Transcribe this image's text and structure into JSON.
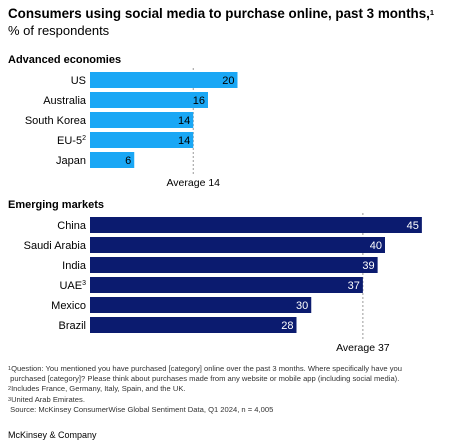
{
  "title": "Consumers using social media to purchase online, past 3 months,",
  "title_sup": "1",
  "subtitle": "% of respondents",
  "colors": {
    "advanced": "#1AA7F5",
    "emerging": "#0B1B6F",
    "average_line": "#9a9a9a"
  },
  "chart_data": [
    {
      "type": "bar",
      "orientation": "horizontal",
      "title": "Advanced economies",
      "categories": [
        "US",
        "Australia",
        "South Korea",
        "EU-5",
        "Japan"
      ],
      "category_sups": [
        "",
        "",
        "",
        "2",
        ""
      ],
      "values": [
        20,
        16,
        14,
        14,
        6
      ],
      "average": {
        "label": "Average 14",
        "value": 14
      },
      "xlim": [
        0,
        48
      ]
    },
    {
      "type": "bar",
      "orientation": "horizontal",
      "title": "Emerging markets",
      "categories": [
        "China",
        "Saudi Arabia",
        "India",
        "UAE",
        "Mexico",
        "Brazil"
      ],
      "category_sups": [
        "",
        "",
        "",
        "3",
        "",
        ""
      ],
      "values": [
        45,
        40,
        39,
        37,
        30,
        28
      ],
      "average": {
        "label": "Average 37",
        "value": 37
      },
      "xlim": [
        0,
        48
      ]
    }
  ],
  "footnotes": {
    "note1_sup": "1",
    "note1_a": "Question: You mentioned you have purchased [category] online over the past 3 months. Where specifically have you",
    "note1_b": "purchased [category]? Please think about purchases made from any website or mobile app (including social media).",
    "note2_sup": "2",
    "note2": "Includes France, Germany, Italy, Spain, and the UK.",
    "note3_sup": "3",
    "note3": "United Arab Emirates.",
    "source": "Source: McKinsey ConsumerWise Global Sentiment Data, Q1 2024, n = 4,005"
  },
  "brand": "McKinsey & Company"
}
